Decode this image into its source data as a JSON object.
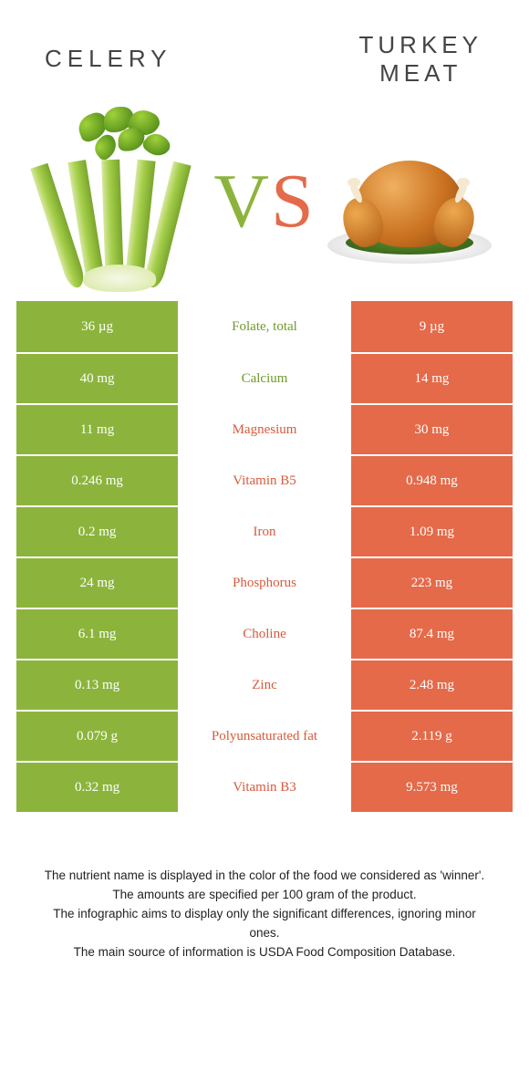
{
  "header": {
    "left_title": "CELERY",
    "right_title": "TURKEY MEAT",
    "vs_v": "V",
    "vs_s": "S"
  },
  "colors": {
    "celery": "#8cb43c",
    "turkey": "#e46a4a",
    "celery_text": "#6f9a2a",
    "turkey_text": "#d85a3c",
    "background": "#ffffff"
  },
  "table": {
    "rows": [
      {
        "nutrient": "Folate, total",
        "left": "36 µg",
        "right": "9 µg",
        "winner": "left"
      },
      {
        "nutrient": "Calcium",
        "left": "40 mg",
        "right": "14 mg",
        "winner": "left"
      },
      {
        "nutrient": "Magnesium",
        "left": "11 mg",
        "right": "30 mg",
        "winner": "right"
      },
      {
        "nutrient": "Vitamin B5",
        "left": "0.246 mg",
        "right": "0.948 mg",
        "winner": "right"
      },
      {
        "nutrient": "Iron",
        "left": "0.2 mg",
        "right": "1.09 mg",
        "winner": "right"
      },
      {
        "nutrient": "Phosphorus",
        "left": "24 mg",
        "right": "223 mg",
        "winner": "right"
      },
      {
        "nutrient": "Choline",
        "left": "6.1 mg",
        "right": "87.4 mg",
        "winner": "right"
      },
      {
        "nutrient": "Zinc",
        "left": "0.13 mg",
        "right": "2.48 mg",
        "winner": "right"
      },
      {
        "nutrient": "Polyunsaturated fat",
        "left": "0.079 g",
        "right": "2.119 g",
        "winner": "right"
      },
      {
        "nutrient": "Vitamin B3",
        "left": "0.32 mg",
        "right": "9.573 mg",
        "winner": "right"
      }
    ]
  },
  "footer": {
    "line1": "The nutrient name is displayed in the color of the food we considered as 'winner'.",
    "line2": "The amounts are specified per 100 gram of the product.",
    "line3": "The infographic aims to display only the significant differences, ignoring minor ones.",
    "line4": "The main source of information is USDA Food Composition Database."
  }
}
